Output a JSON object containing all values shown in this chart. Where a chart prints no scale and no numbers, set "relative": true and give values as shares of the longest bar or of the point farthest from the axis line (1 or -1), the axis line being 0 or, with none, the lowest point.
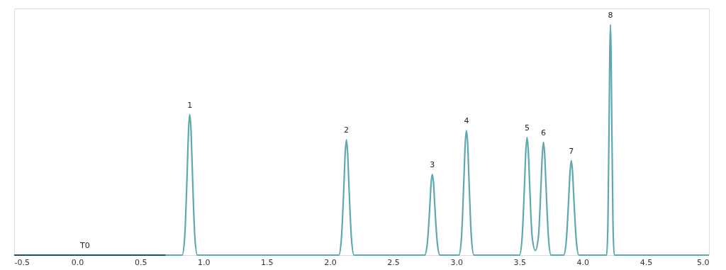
{
  "chart_data": {
    "type": "line",
    "relative": true,
    "xlim": [
      -0.5,
      5.0
    ],
    "xticks": [
      {
        "value": -0.5,
        "label": "-0.5"
      },
      {
        "value": 0,
        "label": "0.0"
      },
      0.5,
      {
        "value": 1,
        "label": "1.0"
      },
      1.5,
      {
        "value": 2,
        "label": "2.0"
      },
      2.5,
      {
        "value": 3,
        "label": "3.0"
      },
      3.5,
      {
        "value": 4,
        "label": "4.0"
      },
      4.5,
      {
        "value": 5,
        "label": "5.0"
      }
    ],
    "grid": false,
    "marker": "none",
    "line_style": "solid",
    "series": [
      {
        "color": "#1d5170",
        "x": [
          -0.5,
          0.7
        ],
        "values": [
          0,
          0
        ]
      },
      {
        "color": "#5fa8b0",
        "x": [
          0.7,
          0.83,
          0.85,
          0.87,
          0.88,
          0.89,
          0.9,
          0.91,
          0.93,
          0.95,
          2.07,
          2.09,
          2.11,
          2.12,
          2.13,
          2.14,
          2.15,
          2.17,
          2.19,
          2.75,
          2.77,
          2.79,
          2.8,
          2.81,
          2.82,
          2.83,
          2.85,
          2.87,
          3.02,
          3.04,
          3.06,
          3.07,
          3.08,
          3.09,
          3.1,
          3.12,
          3.14,
          3.5,
          3.52,
          3.54,
          3.55,
          3.56,
          3.57,
          3.58,
          3.6,
          3.625,
          3.65,
          3.67,
          3.68,
          3.69,
          3.7,
          3.71,
          3.73,
          3.75,
          3.85,
          3.87,
          3.89,
          3.9,
          3.91,
          3.92,
          3.93,
          3.95,
          3.97,
          4.19,
          4.2,
          4.21,
          4.215,
          4.22,
          4.225,
          4.23,
          4.24,
          4.25,
          5.0
        ],
        "values": [
          0,
          0,
          0.08,
          0.37,
          0.54,
          0.61,
          0.54,
          0.37,
          0.08,
          0,
          0,
          0.07,
          0.3,
          0.44,
          0.5,
          0.44,
          0.3,
          0.07,
          0,
          0,
          0.05,
          0.21,
          0.31,
          0.35,
          0.31,
          0.21,
          0.05,
          0,
          0,
          0.07,
          0.33,
          0.48,
          0.54,
          0.48,
          0.33,
          0.07,
          0,
          0,
          0.07,
          0.31,
          0.45,
          0.51,
          0.45,
          0.31,
          0.08,
          0.02,
          0.08,
          0.3,
          0.43,
          0.49,
          0.43,
          0.3,
          0.07,
          0,
          0,
          0.06,
          0.25,
          0.36,
          0.41,
          0.36,
          0.25,
          0.06,
          0,
          0,
          0.14,
          0.61,
          0.88,
          1,
          0.88,
          0.61,
          0.14,
          0,
          0
        ]
      }
    ],
    "annotations": [
      {
        "text": "T0",
        "x": 0.06,
        "y": 0
      },
      {
        "text": "1",
        "x": 0.89,
        "y": 0.61
      },
      {
        "text": "2",
        "x": 2.13,
        "y": 0.5
      },
      {
        "text": "3",
        "x": 2.81,
        "y": 0.35
      },
      {
        "text": "4",
        "x": 3.08,
        "y": 0.54
      },
      {
        "text": "5",
        "x": 3.56,
        "y": 0.51
      },
      {
        "text": "6",
        "x": 3.69,
        "y": 0.49
      },
      {
        "text": "7",
        "x": 3.91,
        "y": 0.41
      },
      {
        "text": "8",
        "x": 4.22,
        "y": 1
      }
    ]
  }
}
